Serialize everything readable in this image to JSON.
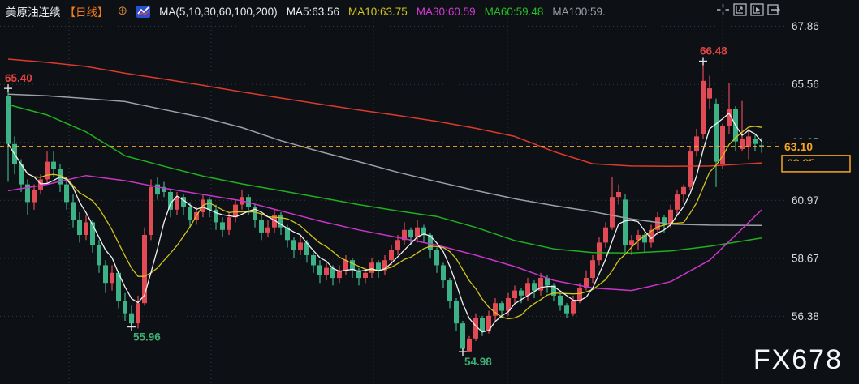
{
  "header": {
    "instrument": "美原油连续",
    "period": "【日线】",
    "add_icon": "⊕",
    "ma_params": "MA(5,10,30,60,100,200)",
    "ma5": "MA5:63.56",
    "ma10": "MA10:63.75",
    "ma30": "MA30:60.59",
    "ma60": "MA60:59.48",
    "ma100": "MA100:59."
  },
  "toolbar": {
    "icons": [
      "crosshair",
      "zoom-axis",
      "zoom-fit",
      "pan-right"
    ]
  },
  "watermark": {
    "text": "FX678"
  },
  "chart_data": {
    "type": "candlestick",
    "title": "美原油连续 日线 (US Crude Oil Continuous, Daily)",
    "ylim": [
      53.7,
      68.9
    ],
    "y_axis": {
      "ticks": [
        67.86,
        65.56,
        63.27,
        60.97,
        58.67,
        56.38
      ]
    },
    "v_gridlines_x": [
      85,
      260,
      460,
      625,
      890
    ],
    "x_layout": {
      "first_x": 10,
      "step": 8,
      "body_w": 6,
      "plot_right": 958
    },
    "current_price": 63.1,
    "secondary_label": "62.85",
    "colors": {
      "up": "#e24b56",
      "down": "#3db287",
      "ma5": "#f0f1f2",
      "ma10": "#d3c41e",
      "ma30": "#c935c9",
      "ma60": "#1fb11f",
      "ma100": "#9ba1a8",
      "ma200": "#dc3a2d",
      "current": "#f6a623",
      "high_label": "#e04343",
      "low_label": "#3fae74"
    },
    "marked_points": [
      {
        "text": "65.40",
        "index": 0,
        "price": 65.4,
        "color": "#e04343",
        "placement": "above"
      },
      {
        "text": "55.96",
        "index": 19,
        "price": 55.96,
        "color": "#3fae74",
        "placement": "below"
      },
      {
        "text": "54.98",
        "index": 70,
        "price": 54.98,
        "color": "#3fae74",
        "placement": "below"
      },
      {
        "text": "66.48",
        "index": 107,
        "price": 66.48,
        "color": "#e04343",
        "placement": "above"
      }
    ],
    "ma_lines_computed": [
      {
        "name": "MA10",
        "color": "#d3c41e",
        "period": 10
      },
      {
        "name": "MA5",
        "color": "#f0f1f2",
        "period": 5
      }
    ],
    "ma_lines_sampled": [
      {
        "name": "MA200",
        "color": "#dc3a2d",
        "idx": [
          0,
          6,
          12,
          18,
          24,
          30,
          36,
          42,
          48,
          54,
          60,
          66,
          72,
          78,
          84,
          90,
          96,
          102,
          108,
          116
        ],
        "prices": [
          66.56,
          66.43,
          66.27,
          66.0,
          65.77,
          65.52,
          65.26,
          65.02,
          64.78,
          64.55,
          64.33,
          64.1,
          63.82,
          63.5,
          62.9,
          62.42,
          62.33,
          62.32,
          62.33,
          62.45
        ]
      },
      {
        "name": "MA100",
        "color": "#9ba1a8",
        "idx": [
          0,
          6,
          12,
          18,
          24,
          30,
          36,
          42,
          48,
          54,
          60,
          66,
          72,
          78,
          84,
          90,
          96,
          102,
          108,
          116
        ],
        "prices": [
          65.17,
          65.11,
          65.0,
          64.88,
          64.56,
          64.25,
          63.85,
          63.33,
          62.9,
          62.5,
          62.08,
          61.71,
          61.36,
          61.03,
          60.76,
          60.52,
          60.23,
          60.03,
          59.99,
          59.98
        ]
      },
      {
        "name": "MA60",
        "color": "#1fb11f",
        "idx": [
          0,
          6,
          12,
          18,
          24,
          30,
          36,
          42,
          48,
          54,
          60,
          66,
          72,
          78,
          84,
          90,
          96,
          102,
          108,
          116
        ],
        "prices": [
          64.76,
          64.35,
          63.68,
          62.73,
          62.32,
          61.93,
          61.62,
          61.35,
          61.08,
          60.8,
          60.55,
          60.33,
          59.9,
          59.38,
          59.05,
          58.9,
          58.89,
          58.97,
          59.15,
          59.48
        ]
      },
      {
        "name": "MA30",
        "color": "#c935c9",
        "idx": [
          0,
          6,
          12,
          18,
          24,
          30,
          36,
          42,
          48,
          54,
          60,
          66,
          72,
          78,
          84,
          90,
          96,
          102,
          108,
          116
        ],
        "prices": [
          61.35,
          61.6,
          61.95,
          61.75,
          61.45,
          61.2,
          60.95,
          60.55,
          60.15,
          59.8,
          59.5,
          59.2,
          58.8,
          58.35,
          57.8,
          57.5,
          57.4,
          57.75,
          58.6,
          60.59
        ]
      }
    ],
    "candles": [
      [
        65.1,
        65.4,
        61.7,
        63.2
      ],
      [
        63.2,
        63.5,
        62.0,
        62.4
      ],
      [
        62.4,
        62.6,
        61.3,
        61.6
      ],
      [
        61.6,
        61.8,
        60.4,
        60.9
      ],
      [
        60.9,
        61.6,
        60.6,
        61.4
      ],
      [
        61.4,
        62.0,
        61.2,
        61.8
      ],
      [
        61.8,
        62.9,
        61.6,
        62.5
      ],
      [
        62.5,
        62.9,
        61.9,
        62.2
      ],
      [
        62.2,
        62.4,
        61.3,
        61.6
      ],
      [
        61.6,
        61.8,
        60.6,
        60.9
      ],
      [
        60.9,
        61.2,
        59.9,
        60.2
      ],
      [
        60.2,
        60.5,
        59.3,
        59.6
      ],
      [
        59.6,
        60.4,
        59.4,
        60.1
      ],
      [
        60.1,
        60.2,
        58.9,
        59.2
      ],
      [
        59.2,
        59.4,
        58.1,
        58.4
      ],
      [
        58.4,
        58.6,
        57.3,
        57.7
      ],
      [
        57.7,
        58.4,
        57.4,
        58.1
      ],
      [
        58.1,
        58.2,
        56.7,
        57.0
      ],
      [
        57.0,
        57.3,
        56.2,
        56.5
      ],
      [
        56.5,
        56.8,
        55.96,
        56.1
      ],
      [
        56.1,
        57.2,
        55.9,
        56.9
      ],
      [
        56.9,
        59.9,
        56.8,
        59.6
      ],
      [
        59.6,
        61.8,
        59.4,
        61.5
      ],
      [
        61.6,
        61.9,
        61.0,
        61.2
      ],
      [
        61.5,
        61.7,
        61.1,
        61.3
      ],
      [
        61.3,
        61.4,
        60.3,
        60.6
      ],
      [
        60.6,
        61.3,
        60.4,
        61.1
      ],
      [
        61.1,
        61.2,
        60.4,
        60.7
      ],
      [
        60.7,
        60.9,
        59.9,
        60.2
      ],
      [
        60.2,
        60.7,
        60.0,
        60.5
      ],
      [
        60.5,
        61.2,
        60.3,
        61.0
      ],
      [
        61.0,
        61.1,
        60.3,
        60.6
      ],
      [
        60.6,
        60.8,
        59.8,
        60.1
      ],
      [
        60.1,
        60.3,
        59.5,
        59.8
      ],
      [
        59.8,
        60.5,
        59.6,
        60.3
      ],
      [
        60.3,
        61.0,
        60.1,
        60.8
      ],
      [
        60.8,
        61.4,
        60.6,
        61.1
      ],
      [
        61.1,
        61.2,
        60.4,
        60.7
      ],
      [
        60.7,
        60.8,
        59.9,
        60.2
      ],
      [
        60.2,
        60.4,
        59.4,
        59.7
      ],
      [
        59.7,
        60.2,
        59.5,
        59.9
      ],
      [
        59.9,
        60.6,
        59.7,
        60.4
      ],
      [
        60.4,
        60.5,
        59.6,
        59.9
      ],
      [
        59.9,
        60.0,
        59.1,
        59.4
      ],
      [
        59.4,
        59.5,
        58.7,
        59.0
      ],
      [
        59.0,
        59.6,
        58.8,
        59.3
      ],
      [
        59.3,
        59.4,
        58.5,
        58.8
      ],
      [
        58.8,
        58.9,
        58.1,
        58.4
      ],
      [
        58.4,
        58.6,
        57.7,
        58.0
      ],
      [
        58.0,
        58.5,
        57.8,
        58.3
      ],
      [
        58.3,
        58.4,
        57.6,
        57.9
      ],
      [
        57.9,
        58.4,
        57.7,
        58.2
      ],
      [
        58.2,
        58.8,
        58.0,
        58.6
      ],
      [
        58.6,
        58.7,
        57.9,
        58.2
      ],
      [
        58.2,
        58.3,
        57.6,
        57.9
      ],
      [
        57.9,
        58.3,
        57.7,
        58.1
      ],
      [
        58.1,
        58.7,
        57.9,
        58.5
      ],
      [
        58.5,
        58.6,
        57.9,
        58.2
      ],
      [
        58.2,
        58.8,
        58.0,
        58.6
      ],
      [
        58.6,
        59.2,
        58.4,
        59.0
      ],
      [
        59.0,
        59.6,
        58.8,
        59.4
      ],
      [
        59.4,
        60.1,
        59.2,
        59.8
      ],
      [
        59.8,
        59.9,
        59.2,
        59.5
      ],
      [
        59.5,
        60.2,
        59.3,
        59.9
      ],
      [
        59.9,
        60.0,
        59.3,
        59.6
      ],
      [
        59.6,
        59.7,
        58.7,
        59.0
      ],
      [
        59.0,
        59.1,
        58.1,
        58.4
      ],
      [
        58.4,
        58.5,
        57.5,
        57.8
      ],
      [
        57.8,
        57.9,
        56.7,
        57.0
      ],
      [
        57.0,
        57.1,
        55.8,
        56.1
      ],
      [
        56.1,
        56.2,
        54.98,
        55.1
      ],
      [
        54.99,
        55.6,
        54.98,
        55.5
      ],
      [
        55.5,
        56.5,
        55.4,
        56.3
      ],
      [
        56.3,
        56.4,
        55.6,
        55.8
      ],
      [
        55.8,
        56.6,
        55.7,
        56.4
      ],
      [
        56.4,
        57.1,
        56.2,
        56.9
      ],
      [
        56.9,
        57.0,
        56.3,
        56.6
      ],
      [
        56.6,
        57.3,
        56.4,
        57.1
      ],
      [
        57.1,
        57.6,
        56.9,
        57.4
      ],
      [
        57.4,
        57.5,
        56.9,
        57.2
      ],
      [
        57.2,
        57.9,
        57.0,
        57.7
      ],
      [
        57.7,
        57.8,
        57.1,
        57.4
      ],
      [
        57.4,
        58.1,
        57.2,
        57.9
      ],
      [
        57.9,
        58.0,
        57.3,
        57.6
      ],
      [
        57.6,
        57.7,
        57.0,
        57.2
      ],
      [
        57.2,
        57.3,
        56.6,
        56.8
      ],
      [
        56.8,
        56.9,
        56.3,
        56.5
      ],
      [
        56.5,
        57.2,
        56.4,
        57.0
      ],
      [
        57.0,
        57.7,
        56.9,
        57.5
      ],
      [
        57.5,
        58.2,
        57.4,
        57.9
      ],
      [
        57.9,
        58.8,
        57.7,
        58.6
      ],
      [
        58.6,
        59.5,
        58.4,
        59.3
      ],
      [
        59.3,
        60.1,
        59.1,
        59.9
      ],
      [
        59.9,
        61.9,
        59.8,
        61.1
      ],
      [
        61.1,
        61.6,
        60.8,
        61.3
      ],
      [
        61.0,
        61.2,
        58.9,
        59.2
      ],
      [
        59.2,
        59.6,
        58.8,
        59.4
      ],
      [
        59.4,
        59.8,
        59.0,
        59.6
      ],
      [
        59.6,
        59.7,
        58.9,
        59.3
      ],
      [
        59.3,
        60.0,
        59.1,
        59.8
      ],
      [
        59.8,
        60.5,
        59.6,
        60.3
      ],
      [
        60.3,
        60.4,
        59.7,
        60.0
      ],
      [
        60.0,
        60.8,
        59.9,
        60.6
      ],
      [
        60.6,
        61.4,
        60.4,
        61.2
      ],
      [
        61.2,
        61.6,
        60.9,
        61.5
      ],
      [
        61.5,
        63.1,
        61.4,
        62.9
      ],
      [
        62.9,
        63.8,
        62.7,
        63.5
      ],
      [
        63.6,
        66.48,
        63.4,
        65.7
      ],
      [
        65.0,
        65.9,
        64.6,
        65.4
      ],
      [
        64.8,
        65.0,
        61.5,
        62.5
      ],
      [
        62.4,
        64.0,
        62.2,
        63.9
      ],
      [
        63.9,
        65.6,
        63.6,
        64.6
      ],
      [
        64.6,
        64.7,
        62.9,
        63.3
      ],
      [
        63.0,
        64.9,
        62.9,
        63.4
      ],
      [
        63.1,
        63.8,
        62.6,
        63.5
      ],
      [
        63.4,
        63.6,
        62.9,
        63.2
      ],
      [
        63.15,
        63.45,
        62.85,
        63.1
      ]
    ]
  }
}
